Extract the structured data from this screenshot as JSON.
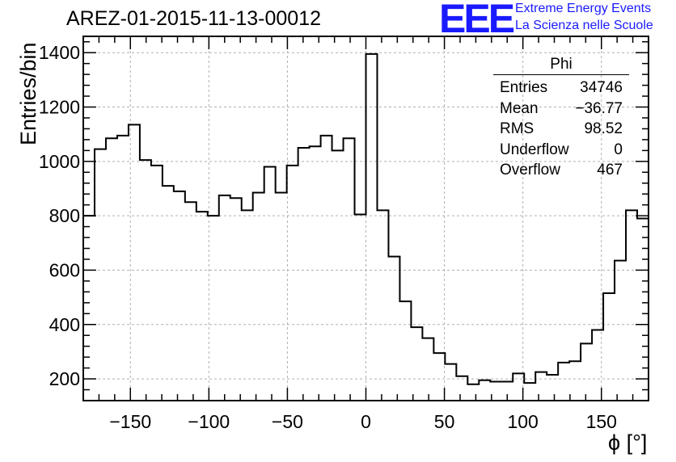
{
  "chart_data": {
    "type": "histogram",
    "title": "AREZ-01-2015-11-13-00012",
    "xlabel": "ϕ [°]",
    "ylabel": "Entries/bin",
    "xlim": [
      -180,
      180
    ],
    "ylim": [
      120,
      1460
    ],
    "x_ticks": [
      -150,
      -100,
      -50,
      0,
      50,
      100,
      150
    ],
    "x_tick_labels": [
      "−150",
      "−100",
      "−50",
      "0",
      "50",
      "100",
      "150"
    ],
    "y_ticks": [
      200,
      400,
      600,
      800,
      1000,
      1200,
      1400
    ],
    "y_tick_labels": [
      "200",
      "400",
      "600",
      "800",
      "1000",
      "1200",
      "1400"
    ],
    "grid": true,
    "bin_edges_start": -180,
    "bin_width": 7.2,
    "values": [
      800,
      1045,
      1085,
      1095,
      1135,
      1005,
      985,
      910,
      890,
      850,
      815,
      800,
      875,
      865,
      820,
      885,
      980,
      885,
      985,
      1050,
      1055,
      1095,
      1040,
      1085,
      805,
      1395,
      820,
      650,
      485,
      390,
      350,
      295,
      255,
      210,
      180,
      195,
      190,
      190,
      220,
      185,
      225,
      215,
      260,
      265,
      330,
      380,
      515,
      635,
      820,
      790
    ],
    "stats": {
      "title": "Phi",
      "rows": [
        {
          "label": "Entries",
          "value": "34746"
        },
        {
          "label": "Mean",
          "value": "−36.77"
        },
        {
          "label": "RMS",
          "value": "98.52"
        },
        {
          "label": "Underflow",
          "value": "0"
        },
        {
          "label": "Overflow",
          "value": "467"
        }
      ]
    }
  },
  "branding": {
    "logo": "EEE",
    "line1": "Extreme Energy Events",
    "line2": "La Scienza nelle Scuole",
    "color": "#1a1aff"
  }
}
